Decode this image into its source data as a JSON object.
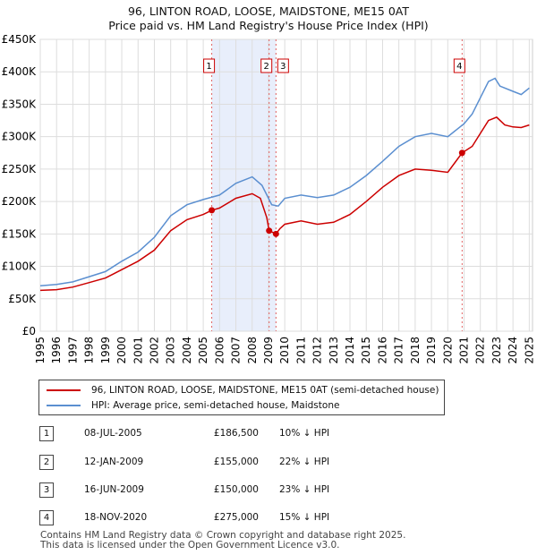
{
  "title_line1": "96, LINTON ROAD, LOOSE, MAIDSTONE, ME15 0AT",
  "title_line2": "Price paid vs. HM Land Registry's House Price Index (HPI)",
  "chart_data": {
    "type": "line",
    "x_range": [
      1995,
      2025.2
    ],
    "ylim": [
      0,
      450000
    ],
    "y_ticks": [
      0,
      50000,
      100000,
      150000,
      200000,
      250000,
      300000,
      350000,
      400000,
      450000
    ],
    "y_tick_labels": [
      "£0",
      "£50K",
      "£100K",
      "£150K",
      "£200K",
      "£250K",
      "£300K",
      "£350K",
      "£400K",
      "£450K"
    ],
    "x_ticks": [
      1995,
      1996,
      1997,
      1998,
      1999,
      2000,
      2001,
      2002,
      2003,
      2004,
      2005,
      2006,
      2007,
      2008,
      2009,
      2010,
      2011,
      2012,
      2013,
      2014,
      2015,
      2016,
      2017,
      2018,
      2019,
      2020,
      2021,
      2022,
      2023,
      2024,
      2025
    ],
    "grid": true,
    "shaded_region": [
      2005.52,
      2009.46
    ],
    "series": [
      {
        "name": "96, LINTON ROAD, LOOSE, MAIDSTONE, ME15 0AT (semi-detached house)",
        "color": "#cc0000",
        "points": [
          [
            1995,
            63000
          ],
          [
            1996,
            64000
          ],
          [
            1997,
            68000
          ],
          [
            1998,
            75000
          ],
          [
            1999,
            82000
          ],
          [
            2000,
            95000
          ],
          [
            2001,
            108000
          ],
          [
            2002,
            125000
          ],
          [
            2003,
            155000
          ],
          [
            2004,
            172000
          ],
          [
            2005,
            180000
          ],
          [
            2005.52,
            186500
          ],
          [
            2006,
            190000
          ],
          [
            2007,
            205000
          ],
          [
            2008,
            212000
          ],
          [
            2008.5,
            205000
          ],
          [
            2008.9,
            175000
          ],
          [
            2009.04,
            155000
          ],
          [
            2009.46,
            150000
          ],
          [
            2009.7,
            158000
          ],
          [
            2010,
            165000
          ],
          [
            2011,
            170000
          ],
          [
            2012,
            165000
          ],
          [
            2013,
            168000
          ],
          [
            2014,
            180000
          ],
          [
            2015,
            200000
          ],
          [
            2016,
            222000
          ],
          [
            2017,
            240000
          ],
          [
            2018,
            250000
          ],
          [
            2019,
            248000
          ],
          [
            2020,
            245000
          ],
          [
            2020.88,
            275000
          ],
          [
            2021.5,
            285000
          ],
          [
            2022,
            305000
          ],
          [
            2022.5,
            325000
          ],
          [
            2023,
            330000
          ],
          [
            2023.5,
            318000
          ],
          [
            2024,
            315000
          ],
          [
            2024.5,
            314000
          ],
          [
            2025,
            318000
          ]
        ]
      },
      {
        "name": "HPI: Average price, semi-detached house, Maidstone",
        "color": "#5b8fd0",
        "points": [
          [
            1995,
            70000
          ],
          [
            1996,
            72000
          ],
          [
            1997,
            76000
          ],
          [
            1998,
            84000
          ],
          [
            1999,
            92000
          ],
          [
            2000,
            108000
          ],
          [
            2001,
            122000
          ],
          [
            2002,
            145000
          ],
          [
            2003,
            178000
          ],
          [
            2004,
            195000
          ],
          [
            2005,
            203000
          ],
          [
            2006,
            210000
          ],
          [
            2007,
            228000
          ],
          [
            2008,
            238000
          ],
          [
            2008.6,
            225000
          ],
          [
            2009.2,
            195000
          ],
          [
            2009.6,
            193000
          ],
          [
            2010,
            205000
          ],
          [
            2011,
            210000
          ],
          [
            2012,
            206000
          ],
          [
            2013,
            210000
          ],
          [
            2014,
            222000
          ],
          [
            2015,
            240000
          ],
          [
            2016,
            262000
          ],
          [
            2017,
            285000
          ],
          [
            2018,
            300000
          ],
          [
            2019,
            305000
          ],
          [
            2020,
            300000
          ],
          [
            2021,
            320000
          ],
          [
            2021.5,
            335000
          ],
          [
            2022,
            360000
          ],
          [
            2022.5,
            385000
          ],
          [
            2022.9,
            390000
          ],
          [
            2023.2,
            378000
          ],
          [
            2024,
            370000
          ],
          [
            2024.5,
            365000
          ],
          [
            2025,
            375000
          ]
        ]
      }
    ],
    "markers": [
      {
        "label": "1",
        "x": 2005.52,
        "y": 186500
      },
      {
        "label": "2",
        "x": 2009.04,
        "y": 155000
      },
      {
        "label": "3",
        "x": 2009.46,
        "y": 150000
      },
      {
        "label": "4",
        "x": 2020.88,
        "y": 275000
      }
    ]
  },
  "legend": {
    "property_label": "96, LINTON ROAD, LOOSE, MAIDSTONE, ME15 0AT (semi-detached house)",
    "hpi_label": "HPI: Average price, semi-detached house, Maidstone"
  },
  "transactions": [
    {
      "num": "1",
      "date": "08-JUL-2005",
      "price": "£186,500",
      "hpi": "10% ↓ HPI"
    },
    {
      "num": "2",
      "date": "12-JAN-2009",
      "price": "£155,000",
      "hpi": "22% ↓ HPI"
    },
    {
      "num": "3",
      "date": "16-JUN-2009",
      "price": "£150,000",
      "hpi": "23% ↓ HPI"
    },
    {
      "num": "4",
      "date": "18-NOV-2020",
      "price": "£275,000",
      "hpi": "15% ↓ HPI"
    }
  ],
  "footer_line1": "Contains HM Land Registry data © Crown copyright and database right 2025.",
  "footer_line2": "This data is licensed under the Open Government Licence v3.0."
}
